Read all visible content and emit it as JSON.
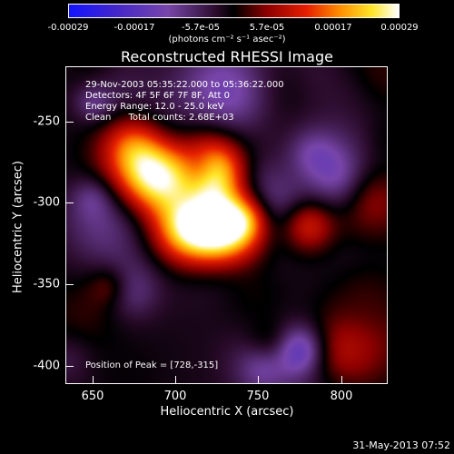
{
  "colorbar": {
    "ticks": [
      "-0.00029",
      "-0.00017",
      "-5.7e-05",
      "5.7e-05",
      "0.00017",
      "0.00029"
    ],
    "unit_label": "(photons cm⁻² s⁻¹ asec⁻²)"
  },
  "plot": {
    "title": "Reconstructed RHESSI Image",
    "info_lines": [
      "29-Nov-2003 05:35:22.000 to 05:36:22.000",
      "Detectors: 4F 5F 6F 7F 8F, Att 0",
      "Energy Range: 12.0 - 25.0 keV",
      "Clean      Total counts: 2.68E+03"
    ],
    "peak_label": "Position of Peak = [728,-315]",
    "xlabel": "Heliocentric X (arcsec)",
    "ylabel": "Heliocentric Y (arcsec)",
    "xticks": [
      "650",
      "700",
      "750",
      "800"
    ],
    "yticks": [
      "-250",
      "-300",
      "-350",
      "-400"
    ],
    "xrange": [
      633,
      826
    ],
    "yrange": [
      -410,
      -232
    ]
  },
  "timestamp": "31-May-2013 07:52"
}
